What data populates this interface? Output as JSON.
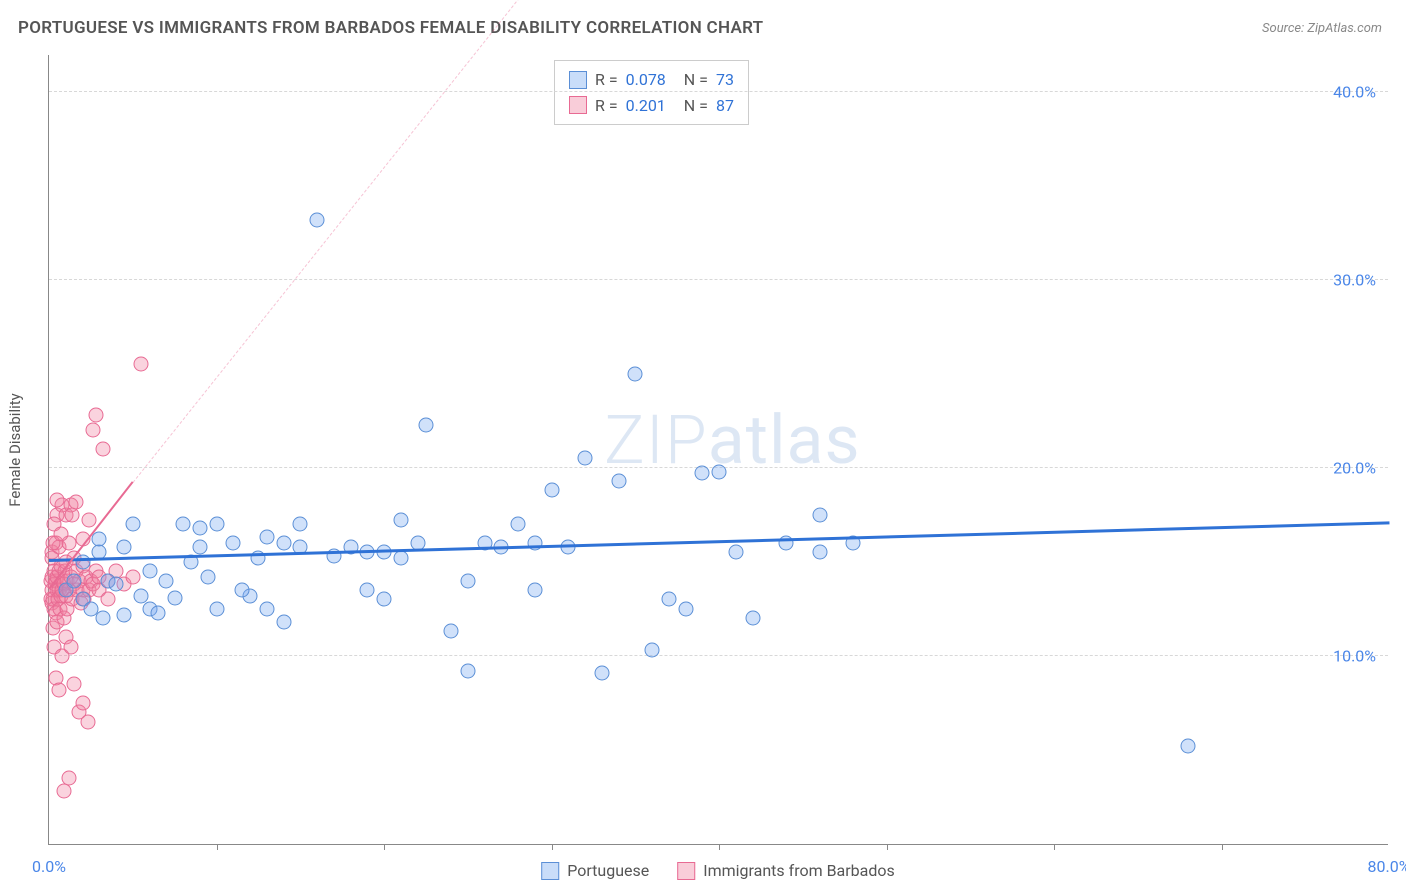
{
  "title": "PORTUGUESE VS IMMIGRANTS FROM BARBADOS FEMALE DISABILITY CORRELATION CHART",
  "source": "Source: ZipAtlas.com",
  "y_axis_label": "Female Disability",
  "watermark": "ZIPatlas",
  "chart": {
    "type": "scatter",
    "xlim": [
      0,
      80
    ],
    "ylim": [
      0,
      42
    ],
    "x_ticks": [
      0.0,
      80.0
    ],
    "x_tick_labels": [
      "0.0%",
      "80.0%"
    ],
    "x_minor_ticks": [
      10,
      20,
      30,
      40,
      50,
      60,
      70
    ],
    "y_ticks": [
      10.0,
      20.0,
      30.0,
      40.0
    ],
    "y_tick_labels": [
      "10.0%",
      "20.0%",
      "30.0%",
      "40.0%"
    ],
    "grid_color": "#d8d8d8",
    "background_color": "#ffffff",
    "marker_size": 15,
    "series": {
      "blue": {
        "label": "Portuguese",
        "color_fill": "rgba(120,170,240,0.35)",
        "color_stroke": "#5b8fd6",
        "R": "0.078",
        "N": "73",
        "trend": {
          "x1": 0,
          "y1": 15.0,
          "x2": 80,
          "y2": 17.0,
          "color": "#2f72d6"
        },
        "points": [
          [
            1,
            13.5
          ],
          [
            1.5,
            14
          ],
          [
            2,
            15
          ],
          [
            2,
            13
          ],
          [
            2.5,
            12.5
          ],
          [
            3,
            15.5
          ],
          [
            3.5,
            14
          ],
          [
            3.2,
            12
          ],
          [
            4,
            13.8
          ],
          [
            4.5,
            12.2
          ],
          [
            5,
            17
          ],
          [
            5.5,
            13.2
          ],
          [
            6,
            12.5
          ],
          [
            6,
            14.5
          ],
          [
            6.5,
            12.3
          ],
          [
            7,
            14
          ],
          [
            8,
            17
          ],
          [
            8.5,
            15
          ],
          [
            9,
            15.8
          ],
          [
            9.5,
            14.2
          ],
          [
            10,
            12.5
          ],
          [
            10,
            17
          ],
          [
            11,
            16
          ],
          [
            12,
            13.2
          ],
          [
            12.5,
            15.2
          ],
          [
            13,
            16.3
          ],
          [
            13,
            12.5
          ],
          [
            14,
            11.8
          ],
          [
            15,
            17
          ],
          [
            15,
            15.8
          ],
          [
            16,
            33.2
          ],
          [
            17,
            15.3
          ],
          [
            18,
            15.8
          ],
          [
            19,
            15.5
          ],
          [
            20,
            13
          ],
          [
            20,
            15.5
          ],
          [
            21,
            17.2
          ],
          [
            21,
            15.2
          ],
          [
            22,
            16
          ],
          [
            22.5,
            22.3
          ],
          [
            24,
            11.3
          ],
          [
            25,
            9.2
          ],
          [
            25,
            14
          ],
          [
            26,
            16
          ],
          [
            27,
            15.8
          ],
          [
            28,
            17
          ],
          [
            29,
            13.5
          ],
          [
            29,
            16
          ],
          [
            30,
            18.8
          ],
          [
            31,
            15.8
          ],
          [
            32,
            20.5
          ],
          [
            33,
            9.1
          ],
          [
            34,
            19.3
          ],
          [
            35,
            25
          ],
          [
            36,
            10.3
          ],
          [
            37,
            13
          ],
          [
            38,
            12.5
          ],
          [
            39,
            19.7
          ],
          [
            40,
            19.8
          ],
          [
            41,
            15.5
          ],
          [
            42,
            12
          ],
          [
            44,
            16
          ],
          [
            46,
            15.5
          ],
          [
            46,
            17.5
          ],
          [
            48,
            16
          ],
          [
            68,
            5.2
          ],
          [
            3,
            16.2
          ],
          [
            4.5,
            15.8
          ],
          [
            7.5,
            13.1
          ],
          [
            9,
            16.8
          ],
          [
            11.5,
            13.5
          ],
          [
            14,
            16.0
          ],
          [
            19,
            13.5
          ]
        ]
      },
      "pink": {
        "label": "Immigrants from Barbados",
        "color_fill": "rgba(240,130,160,0.35)",
        "color_stroke": "#e86a93",
        "R": "0.201",
        "N": "87",
        "trend": {
          "x1": 0,
          "y1": 13.5,
          "x2": 5,
          "y2": 19.2,
          "dash_to_x": 29,
          "dash_to_y": 46,
          "color": "#e86a93"
        },
        "points": [
          [
            0.1,
            13.0
          ],
          [
            0.1,
            14.0
          ],
          [
            0.15,
            13.5
          ],
          [
            0.2,
            12.8
          ],
          [
            0.2,
            14.2
          ],
          [
            0.2,
            15.5
          ],
          [
            0.25,
            13.0
          ],
          [
            0.25,
            11.5
          ],
          [
            0.3,
            12.5
          ],
          [
            0.3,
            14.5
          ],
          [
            0.3,
            10.5
          ],
          [
            0.35,
            13.8
          ],
          [
            0.4,
            14.0
          ],
          [
            0.4,
            12.3
          ],
          [
            0.4,
            16.0
          ],
          [
            0.45,
            13.5
          ],
          [
            0.5,
            14.2
          ],
          [
            0.5,
            11.8
          ],
          [
            0.5,
            17.5
          ],
          [
            0.55,
            13.0
          ],
          [
            0.6,
            14.5
          ],
          [
            0.6,
            13.5
          ],
          [
            0.6,
            15.8
          ],
          [
            0.65,
            12.5
          ],
          [
            0.7,
            13.2
          ],
          [
            0.7,
            14.8
          ],
          [
            0.75,
            18.0
          ],
          [
            0.8,
            13.5
          ],
          [
            0.8,
            10.0
          ],
          [
            0.85,
            14.0
          ],
          [
            0.9,
            13.8
          ],
          [
            0.9,
            12.0
          ],
          [
            0.95,
            14.5
          ],
          [
            1.0,
            13.2
          ],
          [
            1.0,
            15.0
          ],
          [
            1.0,
            17.5
          ],
          [
            1.1,
            14.0
          ],
          [
            1.1,
            12.5
          ],
          [
            1.2,
            13.5
          ],
          [
            1.2,
            16.0
          ],
          [
            1.3,
            18.0
          ],
          [
            1.3,
            14.2
          ],
          [
            1.4,
            13.0
          ],
          [
            1.4,
            17.5
          ],
          [
            1.5,
            13.8
          ],
          [
            1.5,
            8.5
          ],
          [
            1.6,
            14.5
          ],
          [
            1.6,
            18.2
          ],
          [
            1.7,
            13.5
          ],
          [
            1.8,
            14.0
          ],
          [
            1.8,
            7.0
          ],
          [
            1.9,
            12.8
          ],
          [
            2.0,
            13.5
          ],
          [
            2.0,
            14.8
          ],
          [
            2.0,
            7.5
          ],
          [
            2.1,
            13.0
          ],
          [
            2.2,
            14.2
          ],
          [
            2.3,
            6.5
          ],
          [
            2.4,
            13.5
          ],
          [
            2.4,
            17.2
          ],
          [
            2.5,
            14.0
          ],
          [
            2.6,
            22.0
          ],
          [
            2.6,
            13.8
          ],
          [
            2.8,
            14.5
          ],
          [
            2.8,
            22.8
          ],
          [
            3.0,
            13.5
          ],
          [
            3.0,
            14.2
          ],
          [
            3.2,
            21.0
          ],
          [
            3.5,
            14.0
          ],
          [
            3.5,
            13.0
          ],
          [
            4.0,
            14.5
          ],
          [
            4.5,
            13.8
          ],
          [
            5.0,
            14.2
          ],
          [
            5.5,
            25.5
          ],
          [
            0.9,
            2.8
          ],
          [
            1.2,
            3.5
          ],
          [
            0.3,
            17.0
          ],
          [
            0.5,
            18.3
          ],
          [
            0.15,
            15.2
          ],
          [
            0.25,
            16.0
          ],
          [
            0.7,
            16.5
          ],
          [
            1.0,
            11.0
          ],
          [
            1.3,
            10.5
          ],
          [
            0.4,
            8.8
          ],
          [
            0.6,
            8.2
          ],
          [
            1.5,
            15.2
          ],
          [
            2.0,
            16.2
          ]
        ]
      }
    }
  },
  "legend_box": {
    "r_label": "R =",
    "n_label": "N ="
  },
  "bottom_legend": {
    "items": [
      "Portuguese",
      "Immigrants from Barbados"
    ]
  }
}
